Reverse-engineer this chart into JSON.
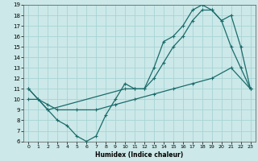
{
  "bg_color": "#cce8e8",
  "grid_color": "#a8d4d4",
  "line_color": "#1a6b6b",
  "xlabel": "Humidex (Indice chaleur)",
  "xlim": [
    -0.5,
    23.5
  ],
  "ylim": [
    6,
    19
  ],
  "xticks": [
    0,
    1,
    2,
    3,
    4,
    5,
    6,
    7,
    8,
    9,
    10,
    11,
    12,
    13,
    14,
    15,
    16,
    17,
    18,
    19,
    20,
    21,
    22,
    23
  ],
  "yticks": [
    6,
    7,
    8,
    9,
    10,
    11,
    12,
    13,
    14,
    15,
    16,
    17,
    18,
    19
  ],
  "line1_x": [
    0,
    1,
    2,
    3,
    4,
    5,
    6,
    7,
    8,
    9,
    10,
    11,
    12,
    13,
    14,
    15,
    16,
    17,
    18,
    19,
    20,
    21,
    22,
    23
  ],
  "line1_y": [
    11,
    10,
    9,
    8,
    7.5,
    6.5,
    6,
    6.5,
    8.5,
    10,
    11.5,
    11,
    11,
    13,
    15.5,
    16,
    17,
    18.5,
    19,
    18.5,
    17.5,
    15,
    13,
    11
  ],
  "line2_x": [
    0,
    2,
    10,
    11,
    12,
    13,
    14,
    15,
    16,
    17,
    18,
    19,
    20,
    21,
    22,
    23
  ],
  "line2_y": [
    11,
    9,
    11,
    11,
    11,
    12,
    13.5,
    15,
    16,
    17.5,
    18.5,
    18.5,
    17.5,
    18,
    15,
    11
  ],
  "line3_x": [
    0,
    1,
    2,
    3,
    5,
    7,
    9,
    11,
    13,
    15,
    17,
    19,
    21,
    23
  ],
  "line3_y": [
    10,
    10,
    9.5,
    9,
    9,
    9,
    9.5,
    10,
    10.5,
    11,
    11.5,
    12,
    13,
    11
  ]
}
